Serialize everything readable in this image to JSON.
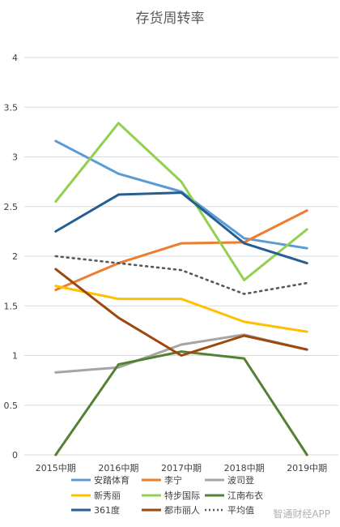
{
  "chart_data": {
    "type": "line",
    "title": "存货周转率",
    "categories": [
      "2015中期",
      "2016中期",
      "2017中期",
      "2018中期",
      "2019中期"
    ],
    "ylim": [
      0,
      4
    ],
    "yticks": [
      "0",
      "0.5",
      "1",
      "1.5",
      "2",
      "2.5",
      "3",
      "3.5",
      "4"
    ],
    "grid": true,
    "legend_position": "bottom",
    "series": [
      {
        "name": "安踏体育",
        "color": "#5b9bd5",
        "dash": false,
        "values": [
          3.16,
          2.83,
          2.65,
          2.18,
          2.08
        ]
      },
      {
        "name": "李宁",
        "color": "#ed7d31",
        "dash": false,
        "values": [
          1.66,
          1.93,
          2.13,
          2.14,
          2.46
        ]
      },
      {
        "name": "波司登",
        "color": "#a5a5a5",
        "dash": false,
        "values": [
          0.83,
          0.88,
          1.11,
          1.21,
          1.06
        ]
      },
      {
        "name": "新秀丽",
        "color": "#ffc000",
        "dash": false,
        "values": [
          1.7,
          1.57,
          1.57,
          1.34,
          1.24
        ]
      },
      {
        "name": "特步国际",
        "color": "#92d050",
        "dash": false,
        "values": [
          2.55,
          3.34,
          2.75,
          1.76,
          2.27
        ]
      },
      {
        "name": "江南布衣",
        "color": "#548235",
        "dash": false,
        "values": [
          0.0,
          0.91,
          1.04,
          0.97,
          0.0
        ]
      },
      {
        "name": "361度",
        "color": "#255e91",
        "dash": false,
        "values": [
          2.25,
          2.62,
          2.64,
          2.13,
          1.93
        ]
      },
      {
        "name": "都市丽人",
        "color": "#9e480e",
        "dash": false,
        "values": [
          1.87,
          1.38,
          1.0,
          1.2,
          1.06
        ]
      },
      {
        "name": "平均值",
        "color": "#595959",
        "dash": true,
        "values": [
          2.0,
          1.93,
          1.86,
          1.62,
          1.73
        ]
      }
    ]
  },
  "watermark": "智通财经APP"
}
